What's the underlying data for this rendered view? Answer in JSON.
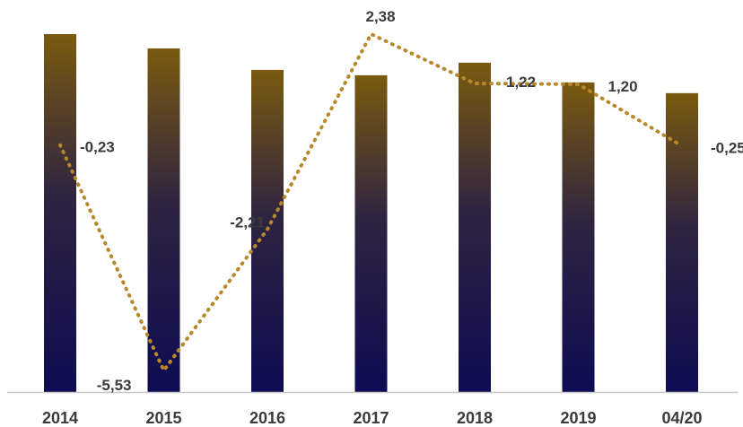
{
  "chart_data": {
    "type": "bar",
    "categories": [
      "2014",
      "2015",
      "2016",
      "2017",
      "2018",
      "2019",
      "04/20"
    ],
    "bar_values": [
      100,
      96,
      90,
      88.5,
      92,
      86.5,
      83.5
    ],
    "bar_ylim": [
      0,
      100
    ],
    "series": [
      {
        "type": "line",
        "values": [
          -0.23,
          -5.53,
          -2.21,
          2.38,
          1.22,
          1.2,
          -0.25
        ],
        "labels": [
          "-0,23",
          "-5,53",
          "-2,21",
          "2,38",
          "1,22",
          "1,20",
          "-0,25"
        ],
        "ylim": [
          -5.53,
          2.38
        ]
      }
    ],
    "colors": {
      "bar_top": "#7a5a0f",
      "bar_mid": "#2f2440",
      "bar_bottom": "#0d0c52",
      "line": "#b8892b",
      "axis": "#c8c8c8",
      "text": "#3b3b3b"
    },
    "grid": false,
    "legend": "none"
  }
}
